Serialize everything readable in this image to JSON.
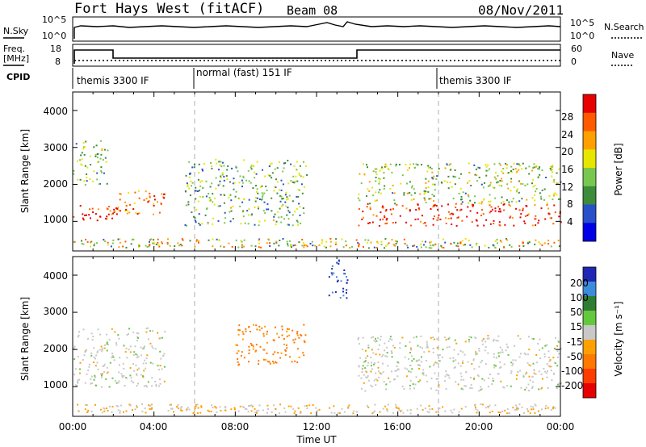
{
  "header": {
    "station": "Fort Hays West (fitACF)",
    "beam": "Beam 08",
    "date": "08/Nov/2011"
  },
  "noise_panel": {
    "left_label": "N.Sky",
    "right_label": "N.Search",
    "left_ticks": [
      "10^5",
      "10^0"
    ],
    "right_ticks": [
      "10^5",
      "10^0"
    ]
  },
  "freq_panel": {
    "left_label_1": "Freq.",
    "left_label_2": "[MHz]",
    "right_label": "Nave",
    "left_ticks": [
      "18",
      "8"
    ],
    "right_ticks": [
      "60",
      "0"
    ]
  },
  "cpid": {
    "label": "CPID",
    "segments": [
      {
        "label": "themis 3300 IF",
        "start_hour": 0
      },
      {
        "label": "normal (fast) 151 IF",
        "start_hour": 6
      },
      {
        "label": "themis 3300 IF",
        "start_hour": 18
      }
    ]
  },
  "x_axis": {
    "label": "Time UT",
    "ticks": [
      "00:00",
      "04:00",
      "08:00",
      "12:00",
      "16:00",
      "20:00",
      "00:00"
    ],
    "tick_hours": [
      0,
      4,
      8,
      12,
      16,
      20,
      24
    ]
  },
  "power_panel": {
    "ylabel": "Slant Range [km]",
    "yticks": [
      "4000",
      "3000",
      "2000",
      "1000"
    ],
    "ytick_values": [
      4000,
      3000,
      2000,
      1000
    ],
    "colorbar_label": "Power [dB]",
    "colorbar_ticks": [
      "28",
      "24",
      "20",
      "16",
      "12",
      "8",
      "4"
    ],
    "colorbar_colors": [
      "#e60000",
      "#ff5a00",
      "#ffa000",
      "#e6e600",
      "#78c850",
      "#3c8c3c",
      "#2850c8",
      "#0000e6"
    ]
  },
  "velocity_panel": {
    "ylabel": "Slant Range [km]",
    "yticks": [
      "4000",
      "3000",
      "2000",
      "1000"
    ],
    "ytick_values": [
      4000,
      3000,
      2000,
      1000
    ],
    "colorbar_label": "Velocity [m s⁻¹]",
    "colorbar_ticks": [
      "200",
      "100",
      "50",
      "15",
      "-15",
      "-50",
      "-100",
      "-200"
    ],
    "colorbar_colors": [
      "#1e28b4",
      "#3c8cdc",
      "#2e7d32",
      "#64c83c",
      "#c8c8c8",
      "#ffa000",
      "#ff7800",
      "#ff3c00",
      "#e60000"
    ]
  },
  "chart_data": [
    {
      "type": "heatmap",
      "title": "Power",
      "xlabel": "Time UT",
      "ylabel": "Slant Range [km]",
      "xlim_hours": [
        0,
        24
      ],
      "ylim": [
        200,
        4500
      ],
      "colorbar_label": "Power [dB]",
      "colorbar_range": [
        0,
        30
      ],
      "features": [
        {
          "t": [
            0,
            2
          ],
          "range_km": [
            1000,
            1500
          ],
          "power_db": 28
        },
        {
          "t": [
            0,
            1.7
          ],
          "range_km": [
            2000,
            3200
          ],
          "power_db": 12
        },
        {
          "t": [
            2,
            4.5
          ],
          "range_km": [
            1200,
            1900
          ],
          "power_db": 24
        },
        {
          "t": [
            5.5,
            11.5
          ],
          "range_km": [
            900,
            2700
          ],
          "power_db": 12
        },
        {
          "t": [
            14,
            24
          ],
          "range_km": [
            900,
            1500
          ],
          "power_db": 28
        },
        {
          "t": [
            14,
            24
          ],
          "range_km": [
            1500,
            2600
          ],
          "power_db": 14
        }
      ]
    },
    {
      "type": "heatmap",
      "title": "Velocity",
      "xlabel": "Time UT",
      "ylabel": "Slant Range [km]",
      "xlim_hours": [
        0,
        24
      ],
      "ylim": [
        200,
        4500
      ],
      "colorbar_label": "Velocity [m s⁻¹]",
      "colorbar_range": [
        -250,
        250
      ],
      "features": [
        {
          "t": [
            0,
            4.5
          ],
          "range_km": [
            1000,
            2600
          ],
          "velocity_ms": 0
        },
        {
          "t": [
            8,
            11.5
          ],
          "range_km": [
            1600,
            2700
          ],
          "velocity_ms": -60
        },
        {
          "t": [
            12.5,
            13.5
          ],
          "range_km": [
            3400,
            4500
          ],
          "velocity_ms": 200
        },
        {
          "t": [
            14,
            24
          ],
          "range_km": [
            900,
            2400
          ],
          "velocity_ms": 0
        }
      ]
    }
  ]
}
